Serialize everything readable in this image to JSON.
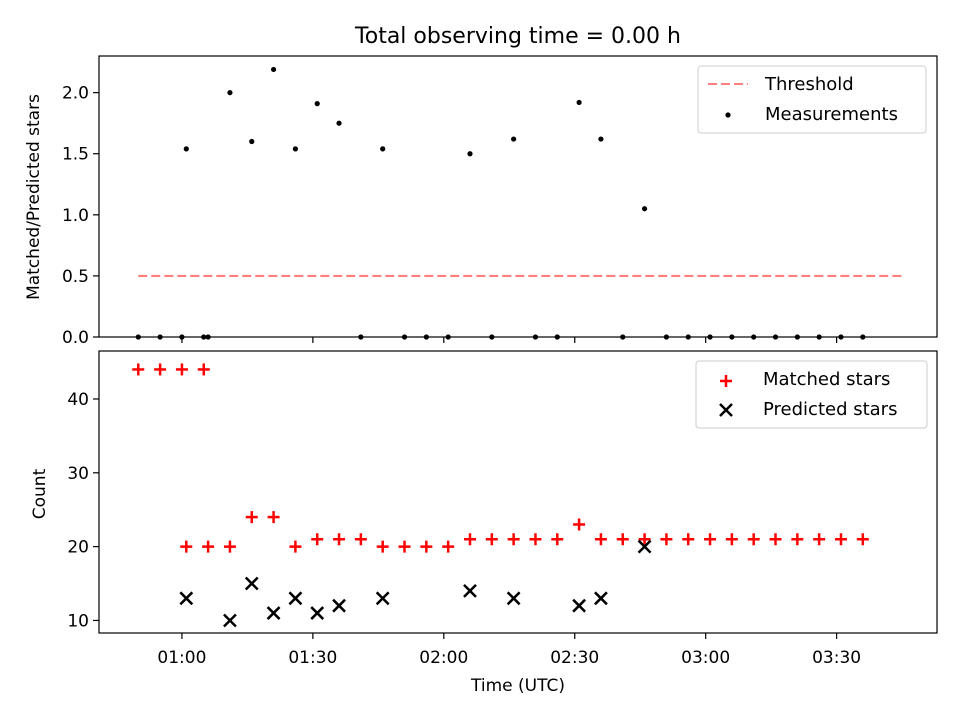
{
  "title": "Total observing time = 0.00 h",
  "xlabel": "Time (UTC)",
  "colors": {
    "threshold": "#ff7f7f",
    "measurements": "#000000",
    "matched": "#ff0000",
    "predicted": "#000000"
  },
  "chart_data": [
    {
      "type": "scatter",
      "ylabel": "Matched/Predicted stars",
      "ylim": [
        0,
        2.3
      ],
      "yticks": [
        0.0,
        0.5,
        1.0,
        1.5,
        2.0
      ],
      "ytick_labels": [
        "0.0",
        "0.5",
        "1.0",
        "1.5",
        "2.0"
      ],
      "xlim": [
        "00:41",
        "03:53"
      ],
      "legend_position": "upper right",
      "legend": [
        "Threshold",
        "Measurements"
      ],
      "series": [
        {
          "name": "Threshold",
          "kind": "dashed-line",
          "x": [
            "00:50",
            "03:45"
          ],
          "y": [
            0.5,
            0.5
          ]
        },
        {
          "name": "Measurements",
          "kind": "dots",
          "x": [
            "00:50",
            "00:55",
            "01:00",
            "01:05",
            "01:01",
            "01:06",
            "01:11",
            "01:16",
            "01:21",
            "01:26",
            "01:31",
            "01:36",
            "01:41",
            "01:46",
            "01:51",
            "01:56",
            "02:01",
            "02:06",
            "02:11",
            "02:16",
            "02:21",
            "02:26",
            "02:31",
            "02:36",
            "02:41",
            "02:46",
            "02:51",
            "02:56",
            "03:01",
            "03:06",
            "03:11",
            "03:16",
            "03:21",
            "03:26",
            "03:31",
            "03:36"
          ],
          "y": [
            0,
            0,
            0,
            0,
            1.54,
            0,
            2.0,
            1.6,
            2.19,
            1.54,
            1.91,
            1.75,
            0,
            1.54,
            0,
            0,
            0,
            1.5,
            0,
            1.62,
            0,
            0,
            1.92,
            1.62,
            0,
            1.05,
            0,
            0,
            0,
            0,
            0,
            0,
            0,
            0,
            0,
            0
          ]
        }
      ]
    },
    {
      "type": "scatter",
      "ylabel": "Count",
      "ylim": [
        8.3,
        46.5
      ],
      "yticks": [
        10,
        20,
        30,
        40
      ],
      "ytick_labels": [
        "10",
        "20",
        "30",
        "40"
      ],
      "xlim": [
        "00:41",
        "03:53"
      ],
      "xticks": [
        "01:00",
        "01:30",
        "02:00",
        "02:30",
        "03:00",
        "03:30"
      ],
      "xtick_labels": [
        "01:00",
        "01:30",
        "02:00",
        "02:30",
        "03:00",
        "03:30"
      ],
      "legend_position": "upper right",
      "legend": [
        "Matched stars",
        "Predicted stars"
      ],
      "series": [
        {
          "name": "Matched stars",
          "kind": "plus",
          "x": [
            "00:50",
            "00:55",
            "01:00",
            "01:05",
            "01:01",
            "01:06",
            "01:11",
            "01:16",
            "01:21",
            "01:26",
            "01:31",
            "01:36",
            "01:41",
            "01:46",
            "01:51",
            "01:56",
            "02:01",
            "02:06",
            "02:11",
            "02:16",
            "02:21",
            "02:26",
            "02:31",
            "02:36",
            "02:41",
            "02:46",
            "02:51",
            "02:56",
            "03:01",
            "03:06",
            "03:11",
            "03:16",
            "03:21",
            "03:26",
            "03:31",
            "03:36"
          ],
          "y": [
            44,
            44,
            44,
            44,
            20,
            20,
            20,
            24,
            24,
            20,
            21,
            21,
            21,
            20,
            20,
            20,
            20,
            21,
            21,
            21,
            21,
            21,
            23,
            21,
            21,
            21,
            21,
            21,
            21,
            21,
            21,
            21,
            21,
            21,
            21,
            21
          ]
        },
        {
          "name": "Predicted stars",
          "kind": "x",
          "x": [
            "01:01",
            "01:11",
            "01:16",
            "01:21",
            "01:26",
            "01:31",
            "01:36",
            "01:46",
            "02:06",
            "02:16",
            "02:31",
            "02:36",
            "02:46"
          ],
          "y": [
            13,
            10,
            15,
            11,
            13,
            11,
            12,
            13,
            14,
            13,
            12,
            13,
            20
          ]
        }
      ]
    }
  ]
}
